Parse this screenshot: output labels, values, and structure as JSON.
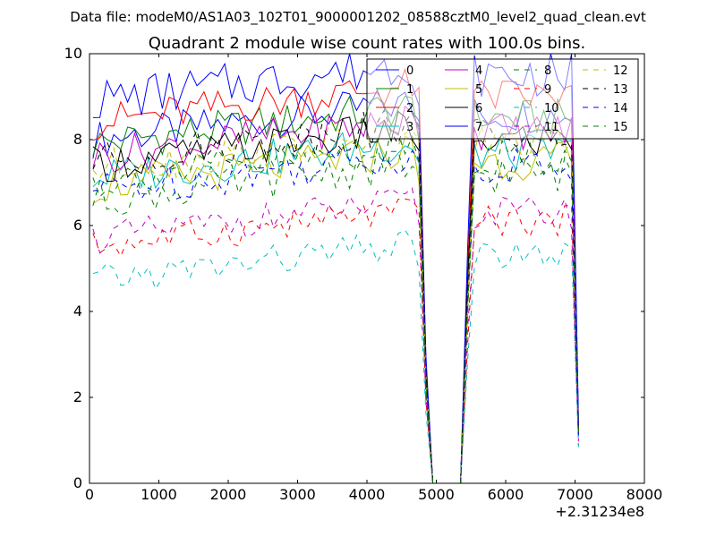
{
  "chart_data": {
    "type": "line",
    "suptitle": "Data file: modeM0/AS1A03_102T01_9000001202_08588cztM0_level2_quad_clean.evt",
    "title": "Quadrant 2 module wise count rates with 100.0s bins.",
    "xlabel": "",
    "ylabel": "",
    "xlim": [
      0,
      8000
    ],
    "ylim": [
      0,
      10
    ],
    "x_ticks": [
      0,
      1000,
      2000,
      3000,
      4000,
      5000,
      6000,
      7000,
      8000
    ],
    "y_ticks": [
      0,
      2,
      4,
      6,
      8,
      10
    ],
    "x_offset_text": "+2.31234e8",
    "grid": false,
    "legend_position": "top-right",
    "legend_columns": 4,
    "x": [
      50,
      150,
      250,
      350,
      450,
      550,
      650,
      750,
      850,
      950,
      1050,
      1150,
      1250,
      1350,
      1450,
      1550,
      1650,
      1750,
      1850,
      1950,
      2050,
      2150,
      2250,
      2350,
      2450,
      2550,
      2650,
      2750,
      2850,
      2950,
      3050,
      3150,
      3250,
      3350,
      3450,
      3550,
      3650,
      3750,
      3850,
      3950,
      4050,
      4150,
      4250,
      4350,
      4450,
      4550,
      4650,
      4750,
      4850,
      4950,
      5050,
      5150,
      5250,
      5350,
      5450,
      5550,
      5650,
      5750,
      5850,
      5950,
      6050,
      6150,
      6250,
      6350,
      6450,
      6550,
      6650,
      6750,
      6850,
      6950,
      7050
    ],
    "series": [
      {
        "name": "0",
        "color": "#0000ff",
        "dash": "solid",
        "base": 8.0,
        "amp": 0.3
      },
      {
        "name": "1",
        "color": "#008000",
        "dash": "solid",
        "base": 7.9,
        "amp": 0.3
      },
      {
        "name": "2",
        "color": "#ff0000",
        "dash": "solid",
        "base": 8.4,
        "amp": 0.3
      },
      {
        "name": "3",
        "color": "#00bfbf",
        "dash": "solid",
        "base": 7.1,
        "amp": 0.3
      },
      {
        "name": "4",
        "color": "#bf00bf",
        "dash": "solid",
        "base": 7.6,
        "amp": 0.3
      },
      {
        "name": "5",
        "color": "#bfbf00",
        "dash": "solid",
        "base": 6.9,
        "amp": 0.3
      },
      {
        "name": "6",
        "color": "#000000",
        "dash": "solid",
        "base": 7.4,
        "amp": 0.3
      },
      {
        "name": "7",
        "color": "#0000ff",
        "dash": "solid",
        "base": 8.9,
        "amp": 0.35
      },
      {
        "name": "8",
        "color": "#008000",
        "dash": "dashed",
        "base": 6.6,
        "amp": 0.3
      },
      {
        "name": "9",
        "color": "#ff0000",
        "dash": "dashed",
        "base": 5.5,
        "amp": 0.25
      },
      {
        "name": "10",
        "color": "#00bfbf",
        "dash": "dashed",
        "base": 4.7,
        "amp": 0.25
      },
      {
        "name": "11",
        "color": "#bf00bf",
        "dash": "dashed",
        "base": 5.7,
        "amp": 0.25
      },
      {
        "name": "12",
        "color": "#bfbf00",
        "dash": "dashed",
        "base": 7.3,
        "amp": 0.3
      },
      {
        "name": "13",
        "color": "#000000",
        "dash": "dashed",
        "base": 7.5,
        "amp": 0.3
      },
      {
        "name": "14",
        "color": "#0000ff",
        "dash": "dashed",
        "base": 6.8,
        "amp": 0.3
      },
      {
        "name": "15",
        "color": "#008000",
        "dash": "dashed",
        "base": 7.0,
        "amp": 0.3
      }
    ]
  }
}
